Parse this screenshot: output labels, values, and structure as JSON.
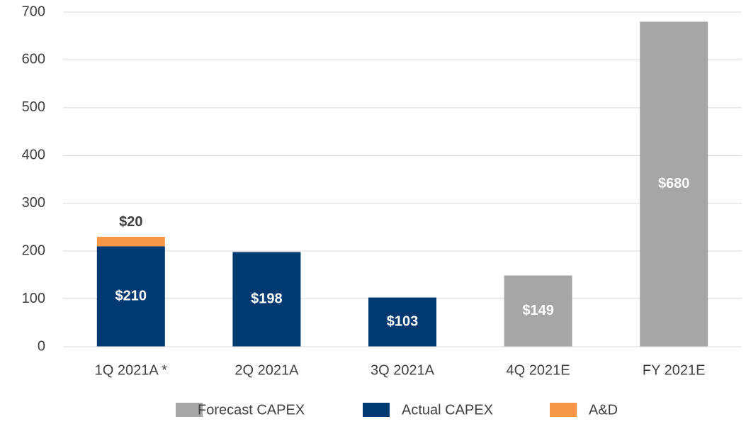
{
  "chart_data": {
    "type": "stacked_bar",
    "categories": [
      "1Q 2021A *",
      "2Q 2021A",
      "3Q 2021A",
      "4Q 2021E",
      "FY 2021E"
    ],
    "series": [
      {
        "name": "Forecast CAPEX",
        "color": "#a6a6a6",
        "values": [
          null,
          null,
          null,
          149,
          680
        ],
        "value_labels": [
          null,
          null,
          null,
          "$149",
          "$680"
        ]
      },
      {
        "name": "Actual CAPEX",
        "color": "#003a70",
        "values": [
          210,
          198,
          103,
          null,
          null
        ],
        "value_labels": [
          "$210",
          "$198",
          "$103",
          null,
          null
        ]
      },
      {
        "name": "A&D",
        "color": "#f79646",
        "values": [
          20,
          null,
          null,
          null,
          null
        ],
        "value_labels": [
          "$20",
          null,
          null,
          null,
          null
        ]
      }
    ],
    "ylim": [
      0,
      700
    ],
    "yticks": [
      0,
      100,
      200,
      300,
      400,
      500,
      600,
      700
    ],
    "grid": true,
    "legend": "bottom"
  }
}
